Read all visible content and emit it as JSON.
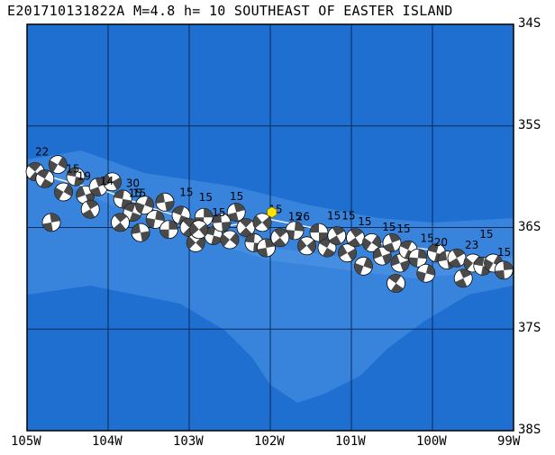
{
  "title": "E201710131822A M=4.8 h= 10 SOUTHEAST OF EASTER ISLAND",
  "map": {
    "lon_range": [
      -105,
      -99
    ],
    "lat_range": [
      -38,
      -34
    ],
    "lon_labels": [
      "105W",
      "104W",
      "103W",
      "102W",
      "101W",
      "100W",
      "99W"
    ],
    "lat_labels": [
      "34S",
      "35S",
      "36S",
      "37S",
      "38S"
    ],
    "colors": {
      "ocean_deep": "#1f6fd0",
      "ridge_shallow": "#3d88df",
      "grid": "#0a2a55",
      "epicenter": "#ffe600"
    },
    "epicenter": {
      "lon": -101.98,
      "lat": -35.85,
      "icon": "hexagon-star-icon"
    },
    "depth_labels": [
      {
        "text": "22",
        "lon": -104.9,
        "lat": -35.29
      },
      {
        "text": "15",
        "lon": -104.52,
        "lat": -35.46
      },
      {
        "text": "19",
        "lon": -104.38,
        "lat": -35.53
      },
      {
        "text": "14",
        "lon": -104.1,
        "lat": -35.58
      },
      {
        "text": "30",
        "lon": -103.78,
        "lat": -35.6
      },
      {
        "text": "15",
        "lon": -103.75,
        "lat": -35.7
      },
      {
        "text": "15",
        "lon": -103.7,
        "lat": -35.7
      },
      {
        "text": "15",
        "lon": -103.12,
        "lat": -35.69
      },
      {
        "text": "15",
        "lon": -102.88,
        "lat": -35.74
      },
      {
        "text": "15",
        "lon": -102.72,
        "lat": -35.89
      },
      {
        "text": "15",
        "lon": -102.5,
        "lat": -35.73
      },
      {
        "text": "15",
        "lon": -102.02,
        "lat": -35.86
      },
      {
        "text": "15",
        "lon": -101.78,
        "lat": -35.93
      },
      {
        "text": "26",
        "lon": -101.68,
        "lat": -35.93
      },
      {
        "text": "15",
        "lon": -101.3,
        "lat": -35.92
      },
      {
        "text": "15",
        "lon": -101.12,
        "lat": -35.92
      },
      {
        "text": "15",
        "lon": -100.92,
        "lat": -35.98
      },
      {
        "text": "15",
        "lon": -100.62,
        "lat": -36.03
      },
      {
        "text": "15",
        "lon": -100.44,
        "lat": -36.05
      },
      {
        "text": "15",
        "lon": -100.15,
        "lat": -36.14
      },
      {
        "text": "20",
        "lon": -99.98,
        "lat": -36.18
      },
      {
        "text": "23",
        "lon": -99.6,
        "lat": -36.21
      },
      {
        "text": "15",
        "lon": -99.42,
        "lat": -36.1
      },
      {
        "text": "15",
        "lon": -99.2,
        "lat": -36.28
      }
    ],
    "mechanisms": [
      {
        "lon": -104.9,
        "lat": -35.45,
        "rot": 40
      },
      {
        "lon": -104.78,
        "lat": -35.52,
        "rot": 210
      },
      {
        "lon": -104.62,
        "lat": -35.38,
        "rot": 120
      },
      {
        "lon": -104.55,
        "lat": -35.65,
        "rot": 300
      },
      {
        "lon": -104.4,
        "lat": -35.5,
        "rot": 10
      },
      {
        "lon": -104.7,
        "lat": -35.95,
        "rot": 80
      },
      {
        "lon": -104.28,
        "lat": -35.68,
        "rot": 160
      },
      {
        "lon": -104.12,
        "lat": -35.6,
        "rot": 250
      },
      {
        "lon": -103.95,
        "lat": -35.55,
        "rot": 330
      },
      {
        "lon": -104.22,
        "lat": -35.82,
        "rot": 60
      },
      {
        "lon": -103.82,
        "lat": -35.72,
        "rot": 190
      },
      {
        "lon": -103.7,
        "lat": -35.85,
        "rot": 20
      },
      {
        "lon": -103.55,
        "lat": -35.78,
        "rot": 110
      },
      {
        "lon": -103.42,
        "lat": -35.92,
        "rot": 280
      },
      {
        "lon": -103.3,
        "lat": -35.75,
        "rot": 350
      },
      {
        "lon": -103.25,
        "lat": -36.02,
        "rot": 90
      },
      {
        "lon": -103.1,
        "lat": -35.88,
        "rot": 200
      },
      {
        "lon": -103.0,
        "lat": -36.0,
        "rot": 45
      },
      {
        "lon": -102.92,
        "lat": -36.15,
        "rot": 135
      },
      {
        "lon": -102.82,
        "lat": -35.9,
        "rot": 270
      },
      {
        "lon": -102.7,
        "lat": -36.08,
        "rot": 15
      },
      {
        "lon": -102.6,
        "lat": -35.95,
        "rot": 175
      },
      {
        "lon": -102.5,
        "lat": -36.12,
        "rot": 310
      },
      {
        "lon": -102.42,
        "lat": -35.85,
        "rot": 75
      },
      {
        "lon": -102.3,
        "lat": -36.0,
        "rot": 225
      },
      {
        "lon": -102.2,
        "lat": -36.15,
        "rot": 5
      },
      {
        "lon": -102.1,
        "lat": -35.95,
        "rot": 140
      },
      {
        "lon": -102.05,
        "lat": -36.2,
        "rot": 260
      },
      {
        "lon": -101.7,
        "lat": -36.03,
        "rot": 95
      },
      {
        "lon": -101.55,
        "lat": -36.18,
        "rot": 320
      },
      {
        "lon": -101.4,
        "lat": -36.05,
        "rot": 180
      },
      {
        "lon": -101.3,
        "lat": -36.2,
        "rot": 30
      },
      {
        "lon": -101.18,
        "lat": -36.08,
        "rot": 240
      },
      {
        "lon": -101.05,
        "lat": -36.25,
        "rot": 150
      },
      {
        "lon": -100.95,
        "lat": -36.1,
        "rot": 55
      },
      {
        "lon": -100.85,
        "lat": -36.38,
        "rot": 290
      },
      {
        "lon": -100.75,
        "lat": -36.15,
        "rot": 125
      },
      {
        "lon": -100.62,
        "lat": -36.28,
        "rot": 340
      },
      {
        "lon": -100.5,
        "lat": -36.15,
        "rot": 70
      },
      {
        "lon": -100.45,
        "lat": -36.55,
        "rot": 215
      },
      {
        "lon": -100.4,
        "lat": -36.35,
        "rot": 160
      },
      {
        "lon": -100.3,
        "lat": -36.22,
        "rot": 25
      },
      {
        "lon": -100.18,
        "lat": -36.3,
        "rot": 275
      },
      {
        "lon": -100.08,
        "lat": -36.45,
        "rot": 105
      },
      {
        "lon": -99.95,
        "lat": -36.25,
        "rot": 195
      },
      {
        "lon": -99.82,
        "lat": -36.32,
        "rot": 350
      },
      {
        "lon": -99.7,
        "lat": -36.3,
        "rot": 60
      },
      {
        "lon": -99.62,
        "lat": -36.5,
        "rot": 245
      },
      {
        "lon": -99.5,
        "lat": -36.35,
        "rot": 130
      },
      {
        "lon": -99.38,
        "lat": -36.38,
        "rot": 10
      },
      {
        "lon": -99.25,
        "lat": -36.35,
        "rot": 300
      },
      {
        "lon": -99.12,
        "lat": -36.42,
        "rot": 85
      },
      {
        "lon": -103.85,
        "lat": -35.95,
        "rot": 230
      },
      {
        "lon": -103.6,
        "lat": -36.05,
        "rot": 170
      },
      {
        "lon": -102.88,
        "lat": -36.02,
        "rot": 320
      },
      {
        "lon": -101.88,
        "lat": -36.1,
        "rot": 50
      }
    ],
    "trench_line": [
      [
        -104.95,
        -35.45
      ],
      [
        -104.5,
        -35.55
      ],
      [
        -104.0,
        -35.65
      ],
      [
        -103.5,
        -35.8
      ],
      [
        -103.0,
        -35.92
      ],
      [
        -102.5,
        -35.98
      ],
      [
        -102.0,
        -35.92
      ],
      [
        -101.5,
        -36.0
      ],
      [
        -101.0,
        -36.1
      ],
      [
        -100.5,
        -36.18
      ],
      [
        -100.0,
        -36.22
      ],
      [
        -99.5,
        -36.3
      ],
      [
        -99.05,
        -36.35
      ]
    ]
  }
}
